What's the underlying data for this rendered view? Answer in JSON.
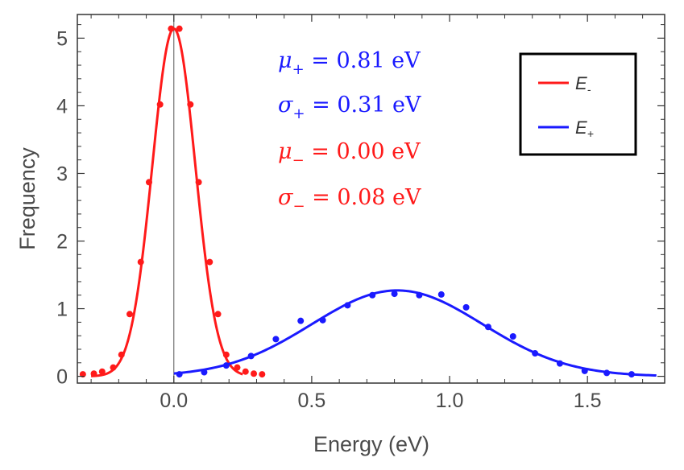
{
  "chart_data": {
    "type": "scatter",
    "xlabel": "Energy (eV)",
    "ylabel": "Frequency",
    "xlim": [
      -0.35,
      1.78
    ],
    "ylim": [
      -0.1,
      5.35
    ],
    "x_ticks": [
      0.0,
      0.5,
      1.0,
      1.5
    ],
    "x_tick_labels": [
      "0.0",
      "0.5",
      "1.0",
      "1.5"
    ],
    "y_ticks": [
      0,
      1,
      2,
      3,
      4,
      5
    ],
    "y_tick_labels": [
      "0",
      "1",
      "2",
      "3",
      "4",
      "5"
    ],
    "vertical_line_x": 0.0,
    "series": [
      {
        "name": "E-",
        "legend_main": "E",
        "legend_sub": "-",
        "color": "#ff1a1a",
        "fit": {
          "type": "gaussian",
          "mu": 0.0,
          "sigma": 0.078,
          "amplitude": 5.14,
          "x_range": [
            -0.3,
            0.25
          ]
        },
        "points": [
          {
            "x": -0.33,
            "y": 0.03
          },
          {
            "x": -0.29,
            "y": 0.04
          },
          {
            "x": -0.26,
            "y": 0.07
          },
          {
            "x": -0.22,
            "y": 0.13
          },
          {
            "x": -0.19,
            "y": 0.32
          },
          {
            "x": -0.16,
            "y": 0.92
          },
          {
            "x": -0.12,
            "y": 1.69
          },
          {
            "x": -0.09,
            "y": 2.87
          },
          {
            "x": -0.05,
            "y": 4.02
          },
          {
            "x": -0.01,
            "y": 5.14
          },
          {
            "x": 0.02,
            "y": 5.14
          },
          {
            "x": 0.06,
            "y": 4.02
          },
          {
            "x": 0.09,
            "y": 2.87
          },
          {
            "x": 0.13,
            "y": 1.69
          },
          {
            "x": 0.16,
            "y": 0.92
          },
          {
            "x": 0.19,
            "y": 0.32
          },
          {
            "x": 0.23,
            "y": 0.13
          },
          {
            "x": 0.26,
            "y": 0.07
          },
          {
            "x": 0.29,
            "y": 0.04
          },
          {
            "x": 0.32,
            "y": 0.03
          }
        ]
      },
      {
        "name": "E+",
        "legend_main": "E",
        "legend_sub": "+",
        "color": "#1a1aff",
        "fit": {
          "type": "gaussian",
          "mu": 0.81,
          "sigma": 0.31,
          "amplitude": 1.27,
          "x_range": [
            0.0,
            1.75
          ]
        },
        "points": [
          {
            "x": 0.02,
            "y": 0.03
          },
          {
            "x": 0.11,
            "y": 0.06
          },
          {
            "x": 0.19,
            "y": 0.16
          },
          {
            "x": 0.28,
            "y": 0.3
          },
          {
            "x": 0.37,
            "y": 0.55
          },
          {
            "x": 0.46,
            "y": 0.82
          },
          {
            "x": 0.54,
            "y": 0.83
          },
          {
            "x": 0.63,
            "y": 1.05
          },
          {
            "x": 0.72,
            "y": 1.2
          },
          {
            "x": 0.8,
            "y": 1.22
          },
          {
            "x": 0.89,
            "y": 1.2
          },
          {
            "x": 0.97,
            "y": 1.21
          },
          {
            "x": 1.06,
            "y": 1.02
          },
          {
            "x": 1.14,
            "y": 0.73
          },
          {
            "x": 1.23,
            "y": 0.59
          },
          {
            "x": 1.31,
            "y": 0.34
          },
          {
            "x": 1.4,
            "y": 0.19
          },
          {
            "x": 1.49,
            "y": 0.08
          },
          {
            "x": 1.57,
            "y": 0.05
          },
          {
            "x": 1.66,
            "y": 0.03
          }
        ]
      }
    ],
    "annotations": [
      {
        "sym": "μ",
        "sub": "+",
        "rest": " = 0.81 eV",
        "color": "#1a1aff"
      },
      {
        "sym": "σ",
        "sub": "+",
        "rest": " = 0.31 eV",
        "color": "#1a1aff"
      },
      {
        "sym": "μ",
        "sub": "−",
        "rest": " = 0.00 eV",
        "color": "#ff1a1a"
      },
      {
        "sym": "σ",
        "sub": "−",
        "rest": " = 0.08 eV",
        "color": "#ff1a1a"
      }
    ],
    "legend_position": "top-right"
  }
}
